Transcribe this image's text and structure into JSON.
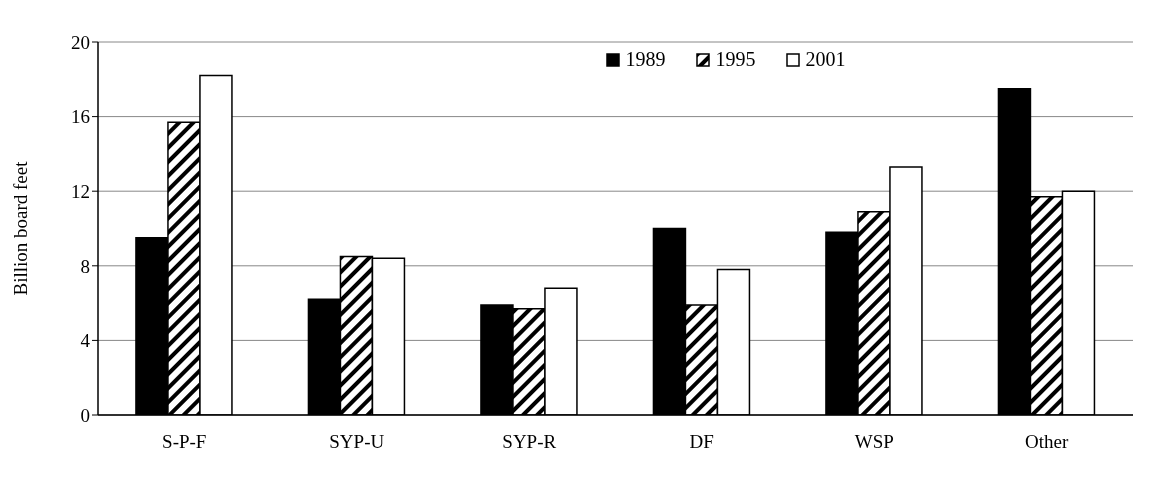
{
  "chart_data": {
    "type": "bar",
    "ylabel": "Billion board feet",
    "categories": [
      "S-P-F",
      "SYP-U",
      "SYP-R",
      "DF",
      "WSP",
      "Other"
    ],
    "series": [
      {
        "name": "1989",
        "color": "#000000",
        "values": [
          9.5,
          6.2,
          5.9,
          10.0,
          9.8,
          17.5
        ]
      },
      {
        "name": "1995",
        "color": "#000000",
        "type": "bar",
        "values": [
          15.7,
          8.5,
          5.7,
          5.9,
          10.9,
          11.7
        ]
      },
      {
        "name": "2001",
        "color": "#ffffff",
        "values": [
          18.2,
          8.4,
          6.8,
          7.8,
          13.3,
          12.0
        ]
      }
    ],
    "ylim": [
      0,
      20
    ],
    "yticks": [
      0,
      4,
      8,
      12,
      16,
      20
    ],
    "grid": "y",
    "legend": "top"
  }
}
